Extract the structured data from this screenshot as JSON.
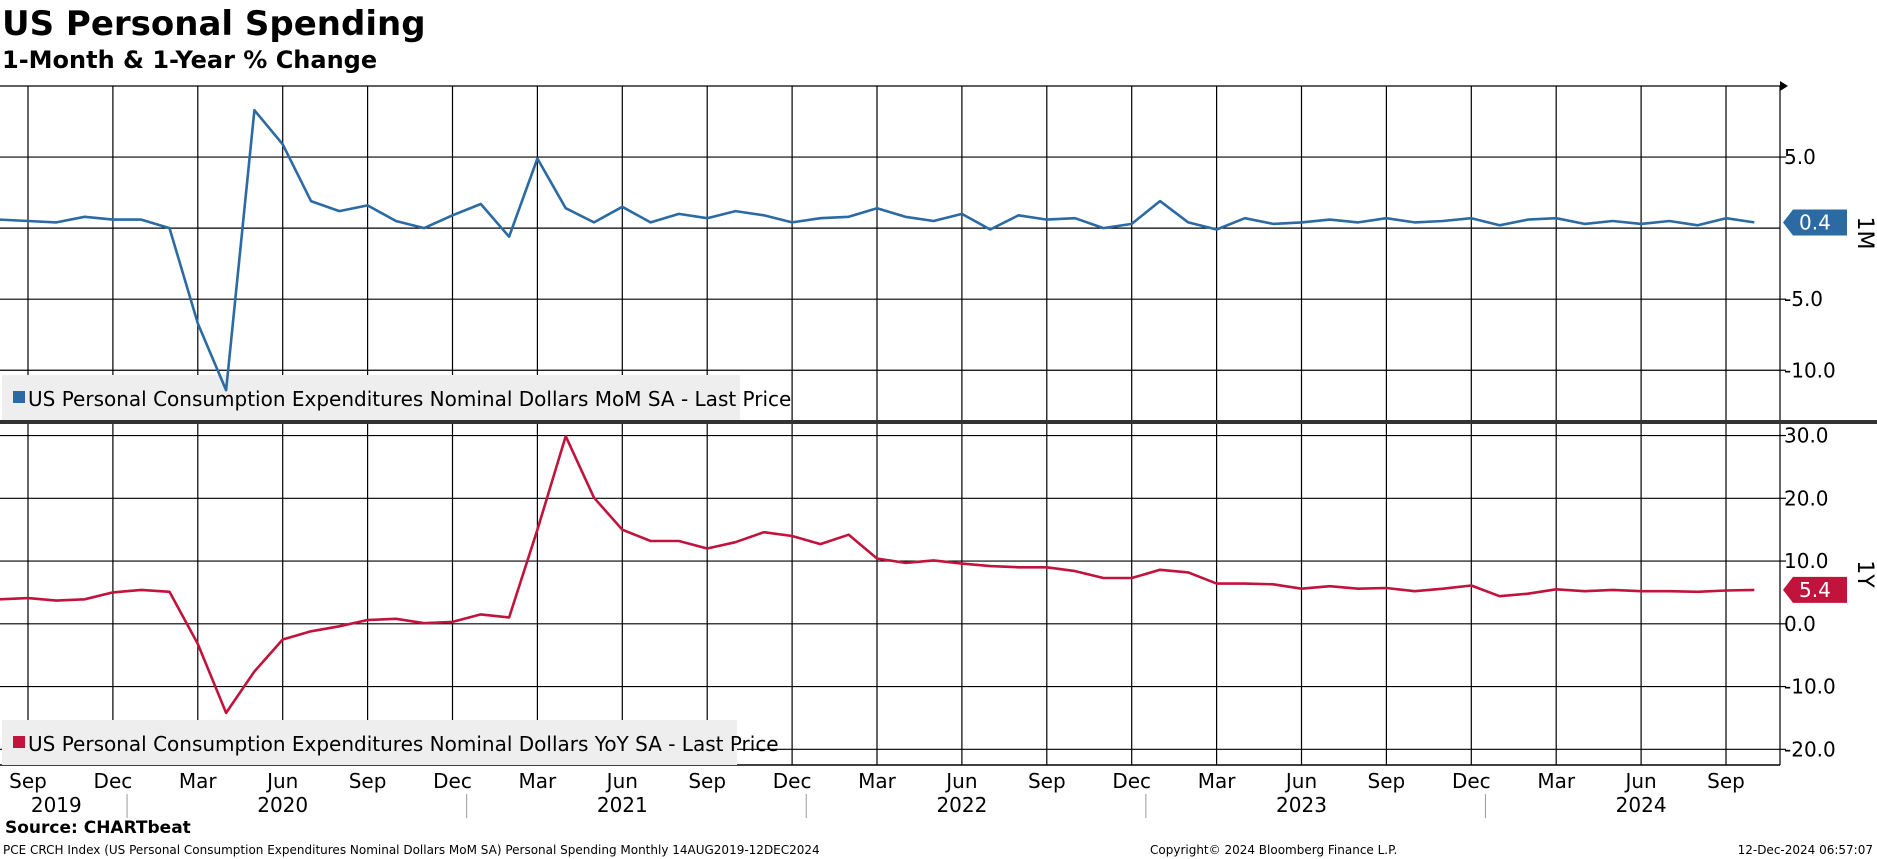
{
  "header": {
    "title": "US Personal Spending",
    "subtitle": "1-Month & 1-Year % Change"
  },
  "footer": {
    "source": "Source: CHARTbeat",
    "index_note": "PCE CRCH Index (US Personal Consumption Expenditures Nominal Dollars MoM SA) Personal Spending  Monthly 14AUG2019-12DEC2024",
    "copyright": "Copyright© 2024 Bloomberg Finance L.P.",
    "timestamp": "12-Dec-2024 06:57:07"
  },
  "colors": {
    "mom": "#2b6aa3",
    "yoy": "#c0143c",
    "grid": "#000000",
    "legend_bg": "#eeeeee"
  },
  "chart_data": [
    {
      "type": "line",
      "panel_label": "1M",
      "legend": "US Personal Consumption Expenditures Nominal Dollars MoM SA - Last Price",
      "last_value_label": "0.4",
      "ylim": [
        -13.5,
        10
      ],
      "yticks": [
        5.0,
        -5.0,
        -10.0
      ],
      "ytick_labels": [
        "5.0",
        "-5.0",
        "-10.0"
      ],
      "grid": true,
      "x": [
        "2019-08",
        "2019-09",
        "2019-10",
        "2019-11",
        "2019-12",
        "2020-01",
        "2020-02",
        "2020-03",
        "2020-04",
        "2020-05",
        "2020-06",
        "2020-07",
        "2020-08",
        "2020-09",
        "2020-10",
        "2020-11",
        "2020-12",
        "2021-01",
        "2021-02",
        "2021-03",
        "2021-04",
        "2021-05",
        "2021-06",
        "2021-07",
        "2021-08",
        "2021-09",
        "2021-10",
        "2021-11",
        "2021-12",
        "2022-01",
        "2022-02",
        "2022-03",
        "2022-04",
        "2022-05",
        "2022-06",
        "2022-07",
        "2022-08",
        "2022-09",
        "2022-10",
        "2022-11",
        "2022-12",
        "2023-01",
        "2023-02",
        "2023-03",
        "2023-04",
        "2023-05",
        "2023-06",
        "2023-07",
        "2023-08",
        "2023-09",
        "2023-10",
        "2023-11",
        "2023-12",
        "2024-01",
        "2024-02",
        "2024-03",
        "2024-04",
        "2024-05",
        "2024-06",
        "2024-07",
        "2024-08",
        "2024-09",
        "2024-10"
      ],
      "series": [
        {
          "values": [
            0.6,
            0.5,
            0.4,
            0.8,
            0.6,
            0.6,
            0.0,
            -6.7,
            -11.4,
            8.3,
            5.9,
            1.9,
            1.2,
            1.6,
            0.5,
            0.0,
            0.9,
            1.7,
            -0.6,
            4.9,
            1.4,
            0.4,
            1.5,
            0.4,
            1.0,
            0.7,
            1.2,
            0.9,
            0.4,
            0.7,
            0.8,
            1.4,
            0.8,
            0.5,
            1.0,
            -0.1,
            0.9,
            0.6,
            0.7,
            0.0,
            0.3,
            1.9,
            0.4,
            -0.1,
            0.7,
            0.3,
            0.4,
            0.6,
            0.4,
            0.7,
            0.4,
            0.5,
            0.7,
            0.2,
            0.6,
            0.7,
            0.3,
            0.5,
            0.3,
            0.5,
            0.2,
            0.7,
            0.4
          ]
        }
      ]
    },
    {
      "type": "line",
      "panel_label": "1Y",
      "legend": "US Personal Consumption Expenditures Nominal Dollars YoY SA - Last Price",
      "last_value_label": "5.4",
      "ylim": [
        -22.5,
        32
      ],
      "yticks": [
        30.0,
        20.0,
        10.0,
        0.0,
        -10.0,
        -20.0
      ],
      "ytick_labels": [
        "30.0",
        "20.0",
        "10.0",
        "0.0",
        "-10.0",
        "-20.0"
      ],
      "grid": true,
      "x": [
        "2019-08",
        "2019-09",
        "2019-10",
        "2019-11",
        "2019-12",
        "2020-01",
        "2020-02",
        "2020-03",
        "2020-04",
        "2020-05",
        "2020-06",
        "2020-07",
        "2020-08",
        "2020-09",
        "2020-10",
        "2020-11",
        "2020-12",
        "2021-01",
        "2021-02",
        "2021-03",
        "2021-04",
        "2021-05",
        "2021-06",
        "2021-07",
        "2021-08",
        "2021-09",
        "2021-10",
        "2021-11",
        "2021-12",
        "2022-01",
        "2022-02",
        "2022-03",
        "2022-04",
        "2022-05",
        "2022-06",
        "2022-07",
        "2022-08",
        "2022-09",
        "2022-10",
        "2022-11",
        "2022-12",
        "2023-01",
        "2023-02",
        "2023-03",
        "2023-04",
        "2023-05",
        "2023-06",
        "2023-07",
        "2023-08",
        "2023-09",
        "2023-10",
        "2023-11",
        "2023-12",
        "2024-01",
        "2024-02",
        "2024-03",
        "2024-04",
        "2024-05",
        "2024-06",
        "2024-07",
        "2024-08",
        "2024-09",
        "2024-10"
      ],
      "series": [
        {
          "values": [
            3.9,
            4.1,
            3.7,
            3.9,
            5.0,
            5.4,
            5.1,
            -3.2,
            -14.2,
            -7.6,
            -2.5,
            -1.2,
            -0.4,
            0.6,
            0.8,
            0.1,
            0.3,
            1.5,
            1.0,
            15.0,
            29.9,
            20.1,
            15.0,
            13.2,
            13.2,
            12.0,
            13.0,
            14.6,
            14.0,
            12.7,
            14.2,
            10.4,
            9.7,
            10.1,
            9.6,
            9.2,
            9.0,
            9.0,
            8.4,
            7.3,
            7.3,
            8.6,
            8.2,
            6.4,
            6.4,
            6.3,
            5.6,
            6.0,
            5.6,
            5.7,
            5.2,
            5.6,
            6.1,
            4.4,
            4.8,
            5.5,
            5.2,
            5.4,
            5.2,
            5.2,
            5.1,
            5.3,
            5.4
          ]
        }
      ]
    }
  ],
  "x_axis": {
    "month_labels": [
      "Sep",
      "Dec",
      "Mar",
      "Jun",
      "Sep",
      "Dec",
      "Mar",
      "Jun",
      "Sep",
      "Dec",
      "Mar",
      "Jun",
      "Sep",
      "Dec",
      "Mar",
      "Jun",
      "Sep",
      "Dec",
      "Mar",
      "Jun",
      "Sep"
    ],
    "month_label_dates": [
      "2019-09",
      "2019-12",
      "2020-03",
      "2020-06",
      "2020-09",
      "2020-12",
      "2021-03",
      "2021-06",
      "2021-09",
      "2021-12",
      "2022-03",
      "2022-06",
      "2022-09",
      "2022-12",
      "2023-03",
      "2023-06",
      "2023-09",
      "2023-12",
      "2024-03",
      "2024-06",
      "2024-09"
    ],
    "year_labels": [
      "2019",
      "2020",
      "2021",
      "2022",
      "2023",
      "2024"
    ],
    "year_label_dates": [
      "2019-10",
      "2020-06",
      "2021-06",
      "2022-06",
      "2023-06",
      "2024-06"
    ]
  }
}
